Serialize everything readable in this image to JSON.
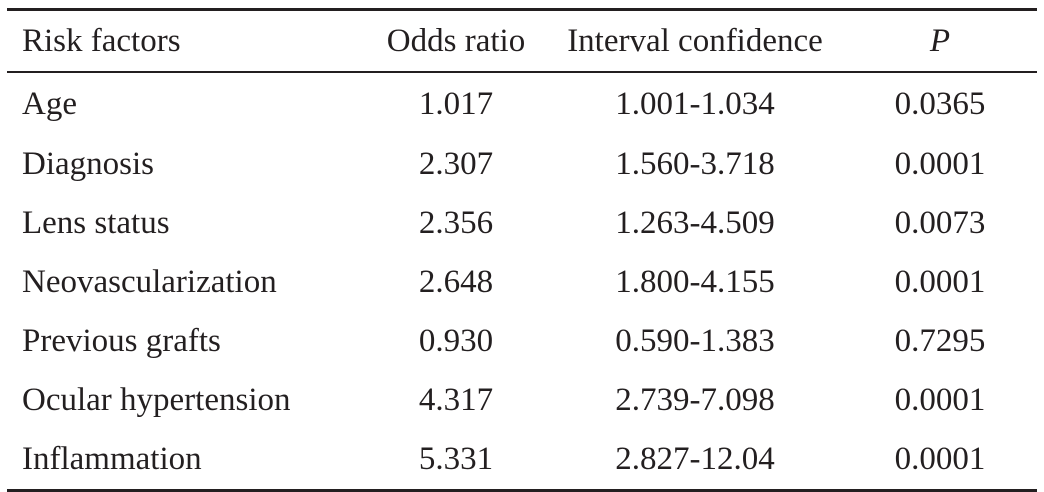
{
  "table": {
    "headers": {
      "risk_factors": "Risk factors",
      "odds_ratio": "Odds ratio",
      "interval_confidence": "Interval confidence",
      "p": "P"
    },
    "rows": [
      {
        "factor": "Age",
        "odds_ratio": "1.017",
        "interval": "1.001-1.034",
        "p": "0.0365"
      },
      {
        "factor": "Diagnosis",
        "odds_ratio": "2.307",
        "interval": "1.560-3.718",
        "p": "0.0001"
      },
      {
        "factor": "Lens status",
        "odds_ratio": "2.356",
        "interval": "1.263-4.509",
        "p": "0.0073"
      },
      {
        "factor": "Neovascularization",
        "odds_ratio": "2.648",
        "interval": "1.800-4.155",
        "p": "0.0001"
      },
      {
        "factor": "Previous grafts",
        "odds_ratio": "0.930",
        "interval": "0.590-1.383",
        "p": "0.7295"
      },
      {
        "factor": "Ocular hypertension",
        "odds_ratio": "4.317",
        "interval": "2.739-7.098",
        "p": "0.0001"
      },
      {
        "factor": "Inflammation",
        "odds_ratio": "5.331",
        "interval": "2.827-12.04",
        "p": "0.0001"
      }
    ]
  }
}
